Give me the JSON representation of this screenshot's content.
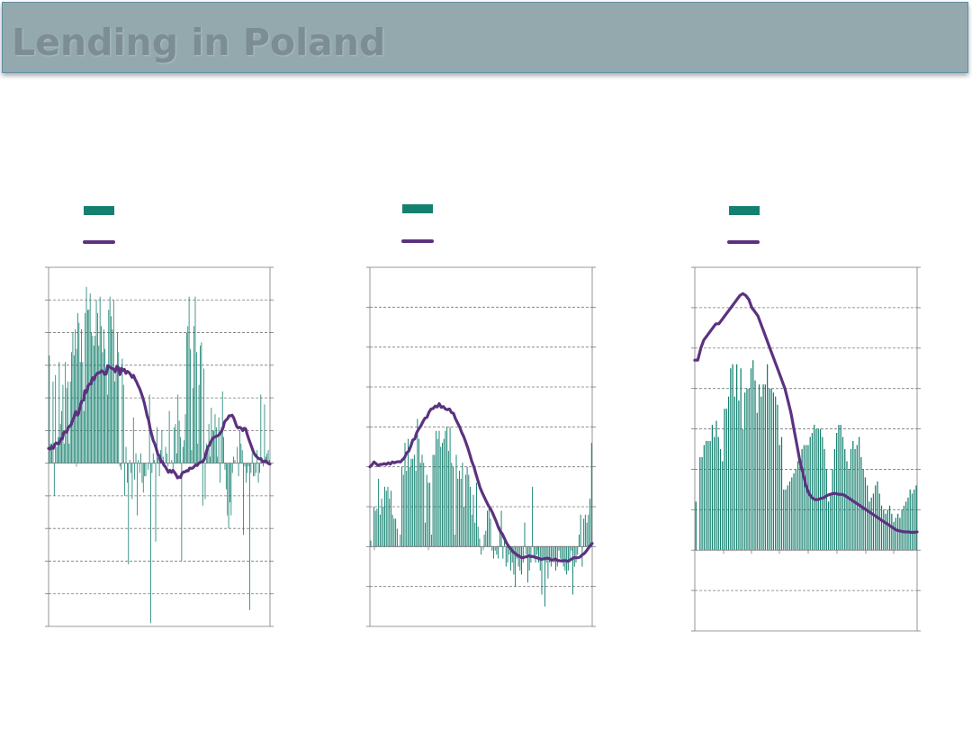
{
  "page": {
    "title": "Lending in Poland"
  },
  "colors": {
    "bar": "#14806f",
    "line": "#5b3280",
    "grid": "#7a7a7a",
    "title_bg": "#93a9ae",
    "title_text": "#7d8d94"
  },
  "chart_data": [
    {
      "type": "bar",
      "title": "",
      "ylim": [
        -5,
        6
      ],
      "grid": true,
      "bar_values": [
        3.3,
        0.6,
        0.6,
        2.5,
        -1.0,
        2.7,
        0.5,
        0.8,
        3.1,
        1.2,
        1.6,
        2.4,
        0.6,
        3.1,
        2.3,
        2.5,
        0.6,
        2.5,
        3.4,
        4.0,
        3.3,
        4.1,
        3.5,
        4.6,
        4.3,
        3.1,
        4.1,
        3.1,
        1.6,
        4.6,
        5.4,
        4.7,
        4.7,
        5.2,
        4.0,
        3.9,
        3.6,
        3.9,
        5.0,
        4.6,
        3.6,
        5.1,
        4.2,
        3.4,
        4.1,
        3.5,
        2.7,
        2.1,
        4.7,
        5.1,
        4.5,
        4.1,
        5.0,
        2.5,
        2.8,
        4.0,
        3.4,
        -0.1,
        -0.2,
        3.2,
        2.4,
        -1.0,
        0.5,
        -0.6,
        -3.1,
        0.1,
        -0.3,
        -1.1,
        1.4,
        -0.5,
        0.3,
        -1.6,
        0.1,
        -0.3,
        0.3,
        -0.6,
        -0.9,
        -0.4,
        -0.4,
        0.0,
        -0.2,
        2.1,
        -4.9,
        -0.3,
        0.3,
        0.1,
        -2.4,
        1.1,
        0.2,
        -0.4,
        0.4,
        1.0,
        0.2,
        -0.1,
        0.5,
        0.3,
        -0.1,
        1.6,
        0.0,
        0.1,
        -0.2,
        1.1,
        1.2,
        0.3,
        2.1,
        1.3,
        0.8,
        -3.0,
        0.5,
        0.7,
        1.5,
        4.0,
        4.2,
        5.1,
        3.5,
        0.4,
        2.3,
        4.2,
        5.1,
        3.4,
        0.6,
        2.4,
        3.6,
        3.7,
        -1.3,
        2.9,
        -1.1,
        0.6,
        0.5,
        1.2,
        0.2,
        1.7,
        1.0,
        1.0,
        1.5,
        1.1,
        0.2,
        1.4,
        -0.6,
        1.1,
        2.2,
        0.8,
        -0.2,
        -0.8,
        -1.6,
        -2.0,
        -1.2,
        -1.6,
        -0.3,
        0.2,
        0.1,
        0.0,
        0.5,
        -0.4,
        1.0,
        0.6,
        0.4,
        -2.2,
        -0.1,
        -0.6,
        -0.3,
        -0.1,
        -4.5,
        -0.3,
        0.3,
        -0.4,
        -0.4,
        -0.3,
        0.4,
        -0.6,
        -0.3,
        2.1,
        0.1,
        -0.1,
        1.8,
        0.2,
        0.3,
        0.4,
        0.1
      ],
      "line_values": [
        0.45,
        0.43,
        0.51,
        0.45,
        0.57,
        0.62,
        0.59,
        0.6,
        0.75,
        0.74,
        0.94,
        0.96,
        0.95,
        1.1,
        1.13,
        1.2,
        1.33,
        1.45,
        1.58,
        1.47,
        1.54,
        1.8,
        1.91,
        1.93,
        2.22,
        2.17,
        2.36,
        2.43,
        2.43,
        2.62,
        2.56,
        2.68,
        2.75,
        2.77,
        2.78,
        2.83,
        2.8,
        2.72,
        2.73,
        2.99,
        2.96,
        2.92,
        2.9,
        2.88,
        2.8,
        2.97,
        2.93,
        2.71,
        2.91,
        2.84,
        2.87,
        2.75,
        2.81,
        2.78,
        2.72,
        2.63,
        2.69,
        2.58,
        2.49,
        2.38,
        2.29,
        2.16,
        2.02,
        1.86,
        1.67,
        1.45,
        1.31,
        1.05,
        0.87,
        0.69,
        0.6,
        0.45,
        0.28,
        0.23,
        0.03,
        0.05,
        -0.06,
        -0.11,
        -0.19,
        -0.28,
        -0.22,
        -0.28,
        -0.22,
        -0.28,
        -0.35,
        -0.45,
        -0.42,
        -0.44,
        -0.31,
        -0.27,
        -0.27,
        -0.23,
        -0.24,
        -0.15,
        -0.16,
        -0.15,
        -0.1,
        -0.05,
        -0.07,
        0.0,
        0.02,
        0.04,
        0.07,
        0.15,
        0.34,
        0.49,
        0.55,
        0.65,
        0.75,
        0.79,
        0.81,
        0.83,
        0.85,
        0.91,
        0.97,
        1.08,
        1.26,
        1.32,
        1.36,
        1.45,
        1.45,
        1.47,
        1.39,
        1.27,
        1.13,
        1.08,
        1.1,
        1.07,
        1.0,
        1.07,
        1.05,
        0.88,
        0.74,
        0.61,
        0.48,
        0.35,
        0.26,
        0.21,
        0.16,
        0.13,
        0.14,
        0.05,
        0.05,
        0.07,
        0.03,
        -0.01,
        -0.03
      ]
    },
    {
      "type": "bar",
      "title": "",
      "ylim": [
        -2,
        7
      ],
      "grid": true,
      "bar_values": [
        0.15,
        0.0,
        1.0,
        0.9,
        0.95,
        1.7,
        0.8,
        1.2,
        1.0,
        1.5,
        1.4,
        1.5,
        1.2,
        1.4,
        0.8,
        0.7,
        0.7,
        0.45,
        0.0,
        0.3,
        2.0,
        1.8,
        2.6,
        1.9,
        2.7,
        2.0,
        2.2,
        2.2,
        2.3,
        1.9,
        3.2,
        2.7,
        2.1,
        2.3,
        2.1,
        0.6,
        1.8,
        1.6,
        1.6,
        0.3,
        2.3,
        2.3,
        2.9,
        2.7,
        2.9,
        2.5,
        2.6,
        2.7,
        2.9,
        3.0,
        2.4,
        3.0,
        2.1,
        2.0,
        0.3,
        2.3,
        1.7,
        1.9,
        1.7,
        2.1,
        1.0,
        1.8,
        2.0,
        1.8,
        1.5,
        0.8,
        1.3,
        0.6,
        1.6,
        0.5,
        0.2,
        -0.2,
        0.0,
        0.3,
        0.4,
        0.9,
        1.0,
        0.7,
        -0.1,
        -0.3,
        -0.1,
        -0.2,
        -0.3,
        0.5,
        0.9,
        -0.3,
        0.2,
        -0.5,
        -0.4,
        -0.2,
        -0.6,
        -0.4,
        -0.7,
        -1.0,
        -0.3,
        -0.5,
        -0.6,
        -0.7,
        -0.4,
        0.6,
        -0.2,
        -0.9,
        -0.6,
        -0.4,
        1.5,
        -0.3,
        -0.4,
        -0.2,
        -0.4,
        -0.6,
        -1.2,
        -0.3,
        -1.5,
        -0.4,
        -0.8,
        -0.4,
        -0.5,
        -0.3,
        -0.4,
        -0.6,
        -0.5,
        -0.1,
        -0.3,
        -0.4,
        -0.5,
        -0.6,
        -0.7,
        -0.6,
        -0.4,
        -0.1,
        -1.2,
        -0.5,
        -0.4,
        -0.2,
        0.3,
        0.8,
        -0.5,
        0.7,
        0.8,
        0.6,
        0.8,
        1.2,
        2.6
      ],
      "line_values": [
        2.0,
        2.05,
        2.12,
        2.08,
        2.03,
        2.06,
        2.06,
        2.08,
        2.06,
        2.1,
        2.07,
        2.12,
        2.1,
        2.12,
        2.13,
        2.12,
        2.18,
        2.23,
        2.35,
        2.39,
        2.51,
        2.67,
        2.7,
        2.86,
        2.95,
        3.03,
        3.13,
        3.22,
        3.24,
        3.37,
        3.45,
        3.46,
        3.52,
        3.5,
        3.58,
        3.49,
        3.51,
        3.45,
        3.43,
        3.45,
        3.36,
        3.34,
        3.2,
        3.1,
        3.0,
        2.86,
        2.76,
        2.62,
        2.47,
        2.31,
        2.13,
        2.0,
        1.82,
        1.65,
        1.48,
        1.36,
        1.25,
        1.14,
        1.04,
        0.96,
        0.86,
        0.74,
        0.62,
        0.48,
        0.38,
        0.31,
        0.2,
        0.09,
        0.01,
        -0.05,
        -0.12,
        -0.16,
        -0.21,
        -0.23,
        -0.27,
        -0.28,
        -0.26,
        -0.25,
        -0.23,
        -0.25,
        -0.25,
        -0.27,
        -0.28,
        -0.3,
        -0.32,
        -0.31,
        -0.3,
        -0.29,
        -0.3,
        -0.34,
        -0.33,
        -0.31,
        -0.35,
        -0.35,
        -0.36,
        -0.35,
        -0.35,
        -0.37,
        -0.34,
        -0.31,
        -0.28,
        -0.28,
        -0.28,
        -0.26,
        -0.21,
        -0.18,
        -0.12,
        -0.05,
        0.02,
        0.08
      ]
    },
    {
      "type": "bar",
      "title": "",
      "ylim": [
        -2,
        7
      ],
      "grid": true,
      "bar_values": [
        1.2,
        0.0,
        2.3,
        2.3,
        2.6,
        2.7,
        2.7,
        2.7,
        3.1,
        2.8,
        3.2,
        2.8,
        2.5,
        2.2,
        3.5,
        3.5,
        3.8,
        4.5,
        4.6,
        3.8,
        4.6,
        3.7,
        4.5,
        3.0,
        3.9,
        4.0,
        4.0,
        4.5,
        4.7,
        4.2,
        3.4,
        4.1,
        3.8,
        4.1,
        4.1,
        4.6,
        4.0,
        4.0,
        3.9,
        3.8,
        3.6,
        2.6,
        2.8,
        1.5,
        1.5,
        1.6,
        1.7,
        1.8,
        1.9,
        2.0,
        2.2,
        2.3,
        2.5,
        2.6,
        2.6,
        2.6,
        2.8,
        2.9,
        3.1,
        3.0,
        3.0,
        3.0,
        2.8,
        2.5,
        2.0,
        1.2,
        1.4,
        2.0,
        2.5,
        2.9,
        3.1,
        3.1,
        2.8,
        2.5,
        2.2,
        2.0,
        2.5,
        2.7,
        2.5,
        2.6,
        2.8,
        2.3,
        2.0,
        1.8,
        1.6,
        1.2,
        1.3,
        1.4,
        1.6,
        1.7,
        1.4,
        1.1,
        1.0,
        0.9,
        1.0,
        1.1,
        0.9,
        0.7,
        0.8,
        0.9,
        0.8,
        1.0,
        1.1,
        1.2,
        1.3,
        1.5,
        1.4,
        1.5,
        1.6
      ],
      "line_values": [
        4.7,
        4.7,
        5.0,
        5.2,
        5.3,
        5.4,
        5.5,
        5.6,
        5.6,
        5.7,
        5.8,
        5.9,
        6.0,
        6.1,
        6.2,
        6.3,
        6.35,
        6.3,
        6.2,
        6.0,
        5.9,
        5.8,
        5.6,
        5.4,
        5.2,
        5.0,
        4.8,
        4.6,
        4.4,
        4.2,
        4.0,
        3.7,
        3.4,
        3.0,
        2.6,
        2.2,
        1.9,
        1.6,
        1.4,
        1.3,
        1.25,
        1.25,
        1.28,
        1.3,
        1.35,
        1.38,
        1.4,
        1.4,
        1.38,
        1.38,
        1.35,
        1.3,
        1.25,
        1.2,
        1.15,
        1.1,
        1.05,
        1.0,
        0.95,
        0.9,
        0.85,
        0.8,
        0.75,
        0.7,
        0.65,
        0.6,
        0.55,
        0.5,
        0.48,
        0.46,
        0.45,
        0.45,
        0.44,
        0.44,
        0.45
      ]
    }
  ]
}
